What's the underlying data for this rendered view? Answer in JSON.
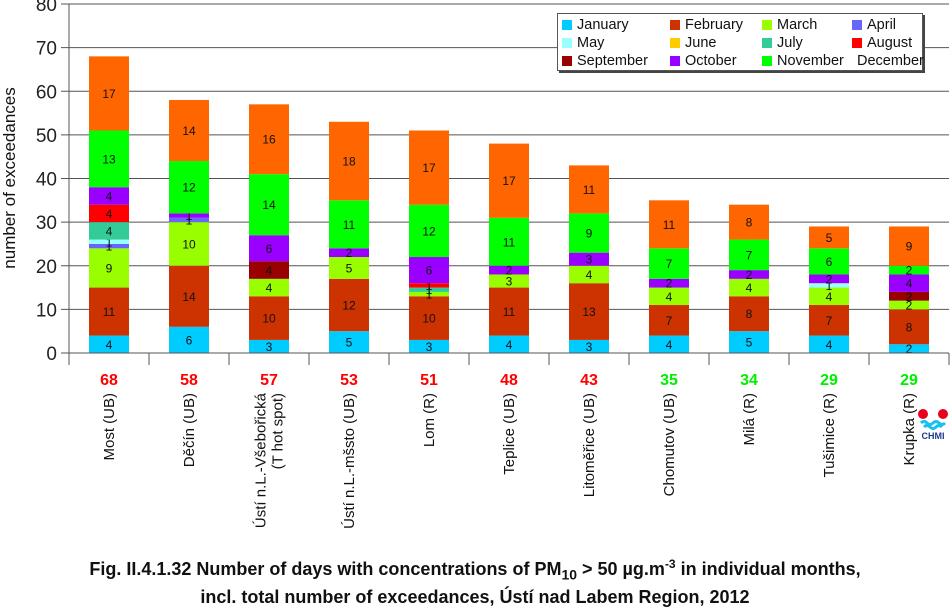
{
  "chart_data": {
    "type": "bar",
    "stacked": true,
    "title": "Fig. II.4.1.32  Number of days with concentrations of PM10 > 50 µg.m-3 in individual months, incl. total number of exceedances, Ústí nad Labem Region, 2012",
    "xlabel": "",
    "ylabel": "number of exceedances",
    "ylim": [
      0,
      80
    ],
    "yticks": [
      0,
      10,
      20,
      30,
      40,
      50,
      60,
      70,
      80
    ],
    "grid": true,
    "legend_position": "top-right",
    "categories": [
      "Most (UB)",
      "Děčín (UB)",
      "Ústí n.L.-Všebořická (T hot spot)",
      "Ústí n.L.-mšsto (UB)",
      "Lom (R)",
      "Teplice (UB)",
      "Litoměřice (UB)",
      "Chomutov (UB)",
      "Milá (R)",
      "Tušimice (R)",
      "Krupka (R)"
    ],
    "category_lines": [
      [
        "Most (UB)"
      ],
      [
        "Děčín (UB)"
      ],
      [
        "Ústí n.L.-Všebořická",
        "(T hot spot)"
      ],
      [
        "Ústí n.L.-mšsto (UB)"
      ],
      [
        "Lom (R)"
      ],
      [
        "Teplice (UB)"
      ],
      [
        "Litoměřice (UB)"
      ],
      [
        "Chomutov (UB)"
      ],
      [
        "Milá (R)"
      ],
      [
        "Tušimice (R)"
      ],
      [
        "Krupka (R)"
      ]
    ],
    "totals": [
      68,
      58,
      57,
      53,
      51,
      48,
      43,
      35,
      34,
      29,
      29
    ],
    "total_colors": [
      "#FF0000",
      "#FF0000",
      "#FF0000",
      "#FF0000",
      "#FF0000",
      "#FF0000",
      "#FF0000",
      "#00EE00",
      "#00EE00",
      "#00EE00",
      "#00EE00"
    ],
    "series": [
      {
        "name": "January",
        "color": "#00CCFF",
        "values": [
          4,
          6,
          3,
          5,
          3,
          4,
          3,
          4,
          5,
          4,
          2
        ]
      },
      {
        "name": "February",
        "color": "#CC3300",
        "values": [
          11,
          14,
          10,
          12,
          10,
          11,
          13,
          7,
          8,
          7,
          8
        ]
      },
      {
        "name": "March",
        "color": "#99FF00",
        "values": [
          9,
          10,
          4,
          5,
          1,
          3,
          4,
          4,
          4,
          4,
          2
        ]
      },
      {
        "name": "April",
        "color": "#6666FF",
        "values": [
          1,
          1,
          0,
          0,
          0,
          0,
          0,
          0,
          0,
          0,
          0
        ]
      },
      {
        "name": "May",
        "color": "#99FFFF",
        "values": [
          1,
          0,
          0,
          0,
          0,
          0,
          0,
          0,
          0,
          1,
          0
        ]
      },
      {
        "name": "June",
        "color": "#FFCC00",
        "values": [
          0,
          0,
          0,
          0,
          0,
          0,
          0,
          0,
          0,
          0,
          0
        ]
      },
      {
        "name": "July",
        "color": "#33CC99",
        "values": [
          4,
          0,
          0,
          0,
          1,
          0,
          0,
          0,
          0,
          0,
          0
        ]
      },
      {
        "name": "August",
        "color": "#FF0000",
        "values": [
          4,
          0,
          0,
          0,
          1,
          0,
          0,
          0,
          0,
          0,
          0
        ]
      },
      {
        "name": "September",
        "color": "#990000",
        "values": [
          0,
          0,
          4,
          0,
          0,
          0,
          0,
          0,
          0,
          0,
          2
        ]
      },
      {
        "name": "October",
        "color": "#9900FF",
        "values": [
          4,
          1,
          6,
          2,
          6,
          2,
          3,
          2,
          2,
          2,
          4
        ]
      },
      {
        "name": "November",
        "color": "#00FF00",
        "values": [
          13,
          12,
          14,
          11,
          12,
          11,
          9,
          7,
          7,
          6,
          2
        ]
      },
      {
        "name": "December",
        "color": "#FF6600",
        "values": [
          17,
          14,
          16,
          18,
          17,
          17,
          11,
          11,
          8,
          5,
          9
        ]
      }
    ]
  },
  "legend_order": [
    0,
    1,
    2,
    3,
    4,
    5,
    6,
    7,
    8,
    9,
    10,
    11
  ],
  "caption": {
    "prefix": "Fig. II.4.1.32  Number of days with concentrations of PM",
    "sub": "10",
    "mid": " > 50 µg.m",
    "sup": "-3",
    "suffix": " in individual months,",
    "line2": "incl. total number of exceedances, Ústí nad Labem Region, 2012"
  },
  "logo": {
    "text": "CHMI"
  }
}
